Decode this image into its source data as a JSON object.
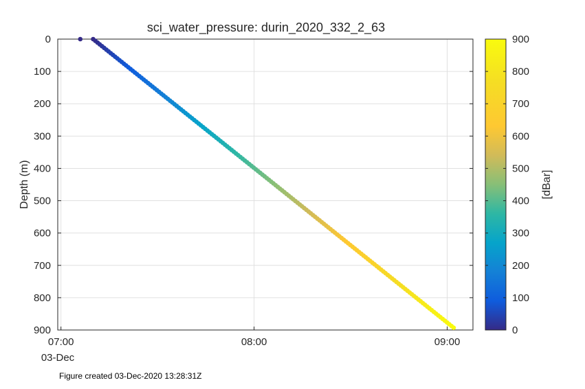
{
  "chart_data": {
    "type": "scatter",
    "title": "sci_water_pressure: durin_2020_332_2_63",
    "xlabel": "",
    "ylabel": "Depth (m)",
    "x_unit": "hour of day (03-Dec-2020)",
    "x_ticks": [
      "07:00",
      "08:00",
      "09:00"
    ],
    "x_date_label": "03-Dec",
    "xlim": [
      "06:59",
      "09:08"
    ],
    "y_ticks": [
      0,
      100,
      200,
      300,
      400,
      500,
      600,
      700,
      800,
      900
    ],
    "ylim": [
      0,
      900
    ],
    "y_reversed": true,
    "grid": true,
    "colorbar": {
      "label": "[dBar]",
      "ticks": [
        0,
        100,
        200,
        300,
        400,
        500,
        600,
        700,
        800,
        900
      ],
      "range": [
        0,
        900
      ],
      "colormap": "parula"
    },
    "points": {
      "isolated": {
        "x": "07:06",
        "y": 0,
        "c": 0
      },
      "profile_start": {
        "x": "07:10",
        "y": 0,
        "c": 0
      },
      "profile_end": {
        "x": "09:02",
        "y": 893,
        "c": 900
      },
      "n_points": 165
    }
  },
  "footnote": "Figure created 03-Dec-2020 13:28:31Z"
}
